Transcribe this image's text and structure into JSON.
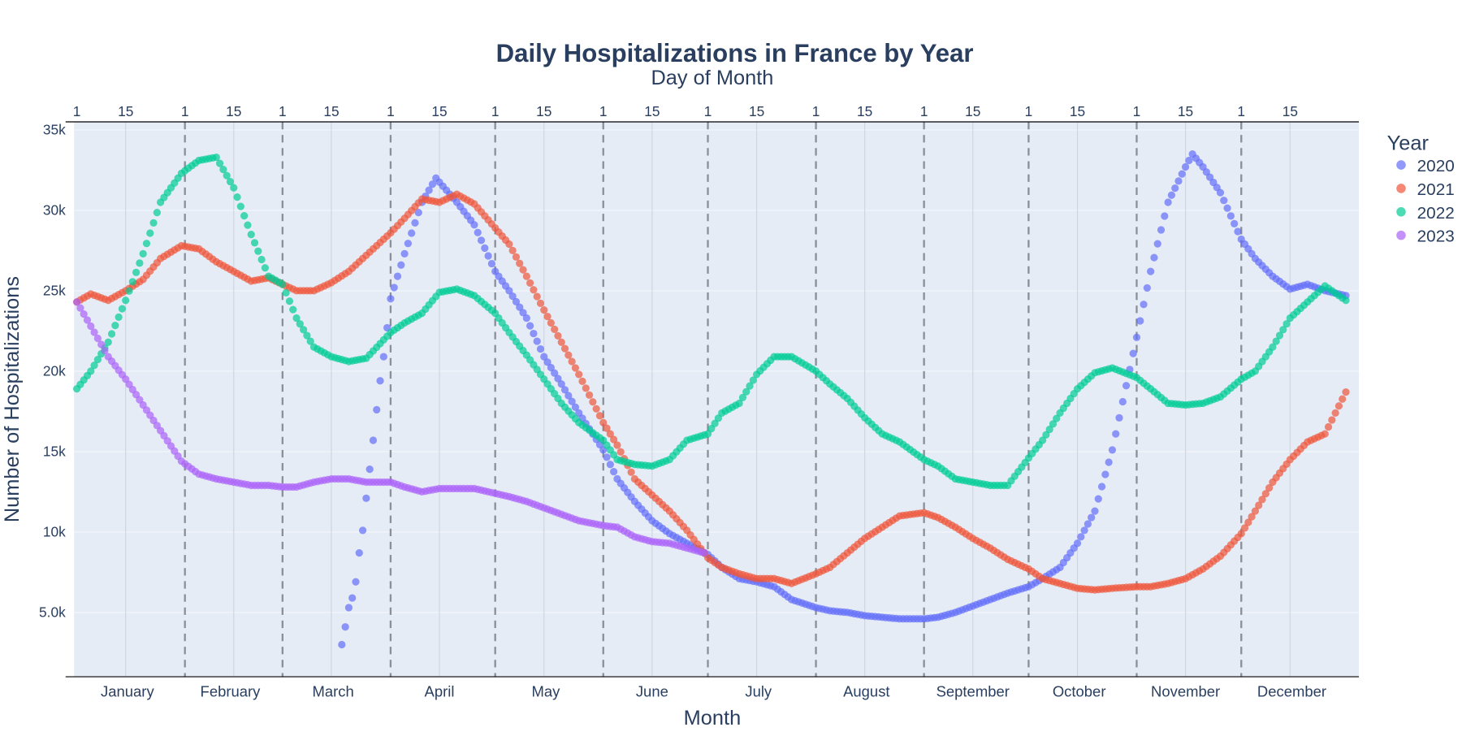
{
  "chart_data": {
    "type": "scatter",
    "title": "Daily Hospitalizations in France by Year",
    "subtitle": "Day of Month",
    "xlabel": "Month",
    "ylabel": "Number of Hospitalizations",
    "top_xlabel": "Day of Month",
    "month_labels": [
      "January",
      "February",
      "March",
      "April",
      "May",
      "June",
      "July",
      "August",
      "September",
      "October",
      "November",
      "December"
    ],
    "day_tick_labels": [
      "1",
      "15"
    ],
    "ytick_labels": [
      "5.0k",
      "10k",
      "15k",
      "20k",
      "25k",
      "30k",
      "35k"
    ],
    "yticks": [
      5000,
      10000,
      15000,
      20000,
      25000,
      30000,
      35000
    ],
    "ylim": [
      1000,
      35500
    ],
    "xlim": [
      "01-01",
      "12-31"
    ],
    "grid": true,
    "month_start_lines": "dashed",
    "legend": {
      "title": "Year",
      "placement": "right"
    },
    "background": "#e5ecf6",
    "series": [
      {
        "name": "2020",
        "color": "#636efa",
        "x": [
          "03-18",
          "03-19",
          "03-20",
          "03-21",
          "03-22",
          "03-23",
          "03-24",
          "03-25",
          "03-26",
          "03-27",
          "03-28",
          "03-29",
          "03-30",
          "03-31",
          "04-01",
          "04-05",
          "04-10",
          "04-14",
          "04-20",
          "04-25",
          "05-01",
          "05-05",
          "05-10",
          "05-15",
          "05-20",
          "05-25",
          "06-01",
          "06-05",
          "06-10",
          "06-15",
          "06-20",
          "06-25",
          "07-01",
          "07-05",
          "07-10",
          "07-15",
          "07-20",
          "07-25",
          "08-01",
          "08-05",
          "08-10",
          "08-15",
          "08-20",
          "08-25",
          "09-01",
          "09-05",
          "09-10",
          "09-15",
          "09-20",
          "09-25",
          "10-01",
          "10-05",
          "10-10",
          "10-15",
          "10-20",
          "10-25",
          "11-01",
          "11-05",
          "11-10",
          "11-15",
          "11-17",
          "11-20",
          "11-25",
          "12-01",
          "12-05",
          "12-10",
          "12-15",
          "12-20",
          "12-25",
          "12-31"
        ],
        "y": [
          3000,
          4100,
          5300,
          5900,
          6900,
          8700,
          10100,
          12100,
          13900,
          15700,
          17600,
          19400,
          20900,
          22700,
          24500,
          27300,
          30500,
          32000,
          30500,
          29100,
          26200,
          25000,
          23300,
          20900,
          19200,
          17400,
          15100,
          13300,
          11900,
          10700,
          9900,
          9300,
          8600,
          7800,
          7100,
          6900,
          6600,
          5800,
          5300,
          5100,
          5000,
          4800,
          4700,
          4600,
          4600,
          4700,
          5000,
          5400,
          5800,
          6200,
          6600,
          7100,
          7800,
          9300,
          11300,
          15100,
          22100,
          26200,
          30500,
          32700,
          33500,
          32700,
          31100,
          28200,
          27000,
          25900,
          25100,
          25400,
          25000,
          24700
        ]
      },
      {
        "name": "2021",
        "color": "#EF553B",
        "x": [
          "01-01",
          "01-05",
          "01-10",
          "01-15",
          "01-20",
          "01-25",
          "01-31",
          "02-05",
          "02-10",
          "02-15",
          "02-20",
          "02-25",
          "03-01",
          "03-05",
          "03-10",
          "03-15",
          "03-20",
          "03-25",
          "04-01",
          "04-05",
          "04-10",
          "04-15",
          "04-20",
          "04-25",
          "05-01",
          "05-05",
          "05-10",
          "05-15",
          "05-20",
          "05-25",
          "06-01",
          "06-05",
          "06-10",
          "06-15",
          "06-20",
          "06-25",
          "07-01",
          "07-05",
          "07-10",
          "07-15",
          "07-20",
          "07-25",
          "08-01",
          "08-05",
          "08-10",
          "08-15",
          "08-20",
          "08-25",
          "09-01",
          "09-05",
          "09-10",
          "09-15",
          "09-20",
          "09-25",
          "10-01",
          "10-05",
          "10-10",
          "10-15",
          "10-20",
          "10-25",
          "11-01",
          "11-05",
          "11-10",
          "11-15",
          "11-20",
          "11-25",
          "12-01",
          "12-05",
          "12-10",
          "12-15",
          "12-20",
          "12-25",
          "12-31"
        ],
        "y": [
          24300,
          24800,
          24400,
          25000,
          25700,
          27000,
          27800,
          27600,
          26800,
          26200,
          25600,
          25800,
          25400,
          25000,
          25000,
          25500,
          26200,
          27200,
          28600,
          29500,
          30700,
          30500,
          31000,
          30400,
          28900,
          27900,
          25900,
          23800,
          21800,
          19800,
          16800,
          15400,
          13300,
          12300,
          11300,
          10100,
          8400,
          7800,
          7400,
          7100,
          7100,
          6800,
          7400,
          7800,
          8700,
          9600,
          10300,
          11000,
          11200,
          10900,
          10300,
          9600,
          9000,
          8300,
          7700,
          7100,
          6800,
          6500,
          6400,
          6500,
          6600,
          6600,
          6800,
          7100,
          7700,
          8500,
          9900,
          11300,
          13100,
          14500,
          15600,
          16100,
          18700
        ]
      },
      {
        "name": "2022",
        "color": "#00cc96",
        "x": [
          "01-01",
          "01-05",
          "01-10",
          "01-15",
          "01-20",
          "01-25",
          "01-31",
          "02-05",
          "02-10",
          "02-15",
          "02-20",
          "02-25",
          "03-01",
          "03-05",
          "03-10",
          "03-15",
          "03-20",
          "03-25",
          "04-01",
          "04-05",
          "04-10",
          "04-15",
          "04-20",
          "04-25",
          "05-01",
          "05-05",
          "05-10",
          "05-15",
          "05-20",
          "05-25",
          "06-01",
          "06-05",
          "06-10",
          "06-15",
          "06-20",
          "06-25",
          "07-01",
          "07-05",
          "07-10",
          "07-15",
          "07-20",
          "07-25",
          "08-01",
          "08-05",
          "08-10",
          "08-15",
          "08-20",
          "08-25",
          "09-01",
          "09-05",
          "09-10",
          "09-15",
          "09-20",
          "09-25",
          "10-01",
          "10-05",
          "10-10",
          "10-15",
          "10-20",
          "10-25",
          "11-01",
          "11-05",
          "11-10",
          "11-15",
          "11-20",
          "11-25",
          "12-01",
          "12-05",
          "12-10",
          "12-15",
          "12-20",
          "12-25",
          "12-31"
        ],
        "y": [
          18900,
          20000,
          21800,
          24400,
          27300,
          30500,
          32300,
          33100,
          33300,
          31400,
          28500,
          25900,
          25400,
          23300,
          21500,
          20900,
          20600,
          20800,
          22400,
          23000,
          23600,
          24900,
          25100,
          24700,
          23600,
          22400,
          21000,
          19500,
          18000,
          16800,
          15700,
          14500,
          14200,
          14100,
          14500,
          15700,
          16100,
          17400,
          18000,
          19800,
          20900,
          20900,
          20000,
          19200,
          18300,
          17100,
          16100,
          15600,
          14500,
          14100,
          13300,
          13100,
          12900,
          12900,
          14600,
          15700,
          17400,
          18900,
          19900,
          20200,
          19600,
          18900,
          18000,
          17900,
          18000,
          18400,
          19500,
          20000,
          21500,
          23300,
          24300,
          25300,
          24400
        ]
      },
      {
        "name": "2023",
        "color": "#ab63fa",
        "x": [
          "01-01",
          "01-05",
          "01-10",
          "01-15",
          "01-20",
          "01-25",
          "01-31",
          "02-05",
          "02-10",
          "02-15",
          "02-20",
          "02-25",
          "03-01",
          "03-05",
          "03-10",
          "03-15",
          "03-20",
          "03-25",
          "04-01",
          "04-05",
          "04-10",
          "04-15",
          "04-20",
          "04-25",
          "05-01",
          "05-05",
          "05-10",
          "05-15",
          "05-20",
          "05-25",
          "06-01",
          "06-05",
          "06-10",
          "06-15",
          "06-20",
          "06-25",
          "06-30"
        ],
        "y": [
          24300,
          22800,
          20900,
          19500,
          17900,
          16300,
          14400,
          13600,
          13300,
          13100,
          12900,
          12900,
          12800,
          12800,
          13100,
          13300,
          13300,
          13100,
          13100,
          12800,
          12500,
          12700,
          12700,
          12700,
          12400,
          12200,
          11900,
          11500,
          11100,
          10700,
          10400,
          10300,
          9700,
          9400,
          9300,
          9000,
          8700
        ]
      }
    ]
  }
}
